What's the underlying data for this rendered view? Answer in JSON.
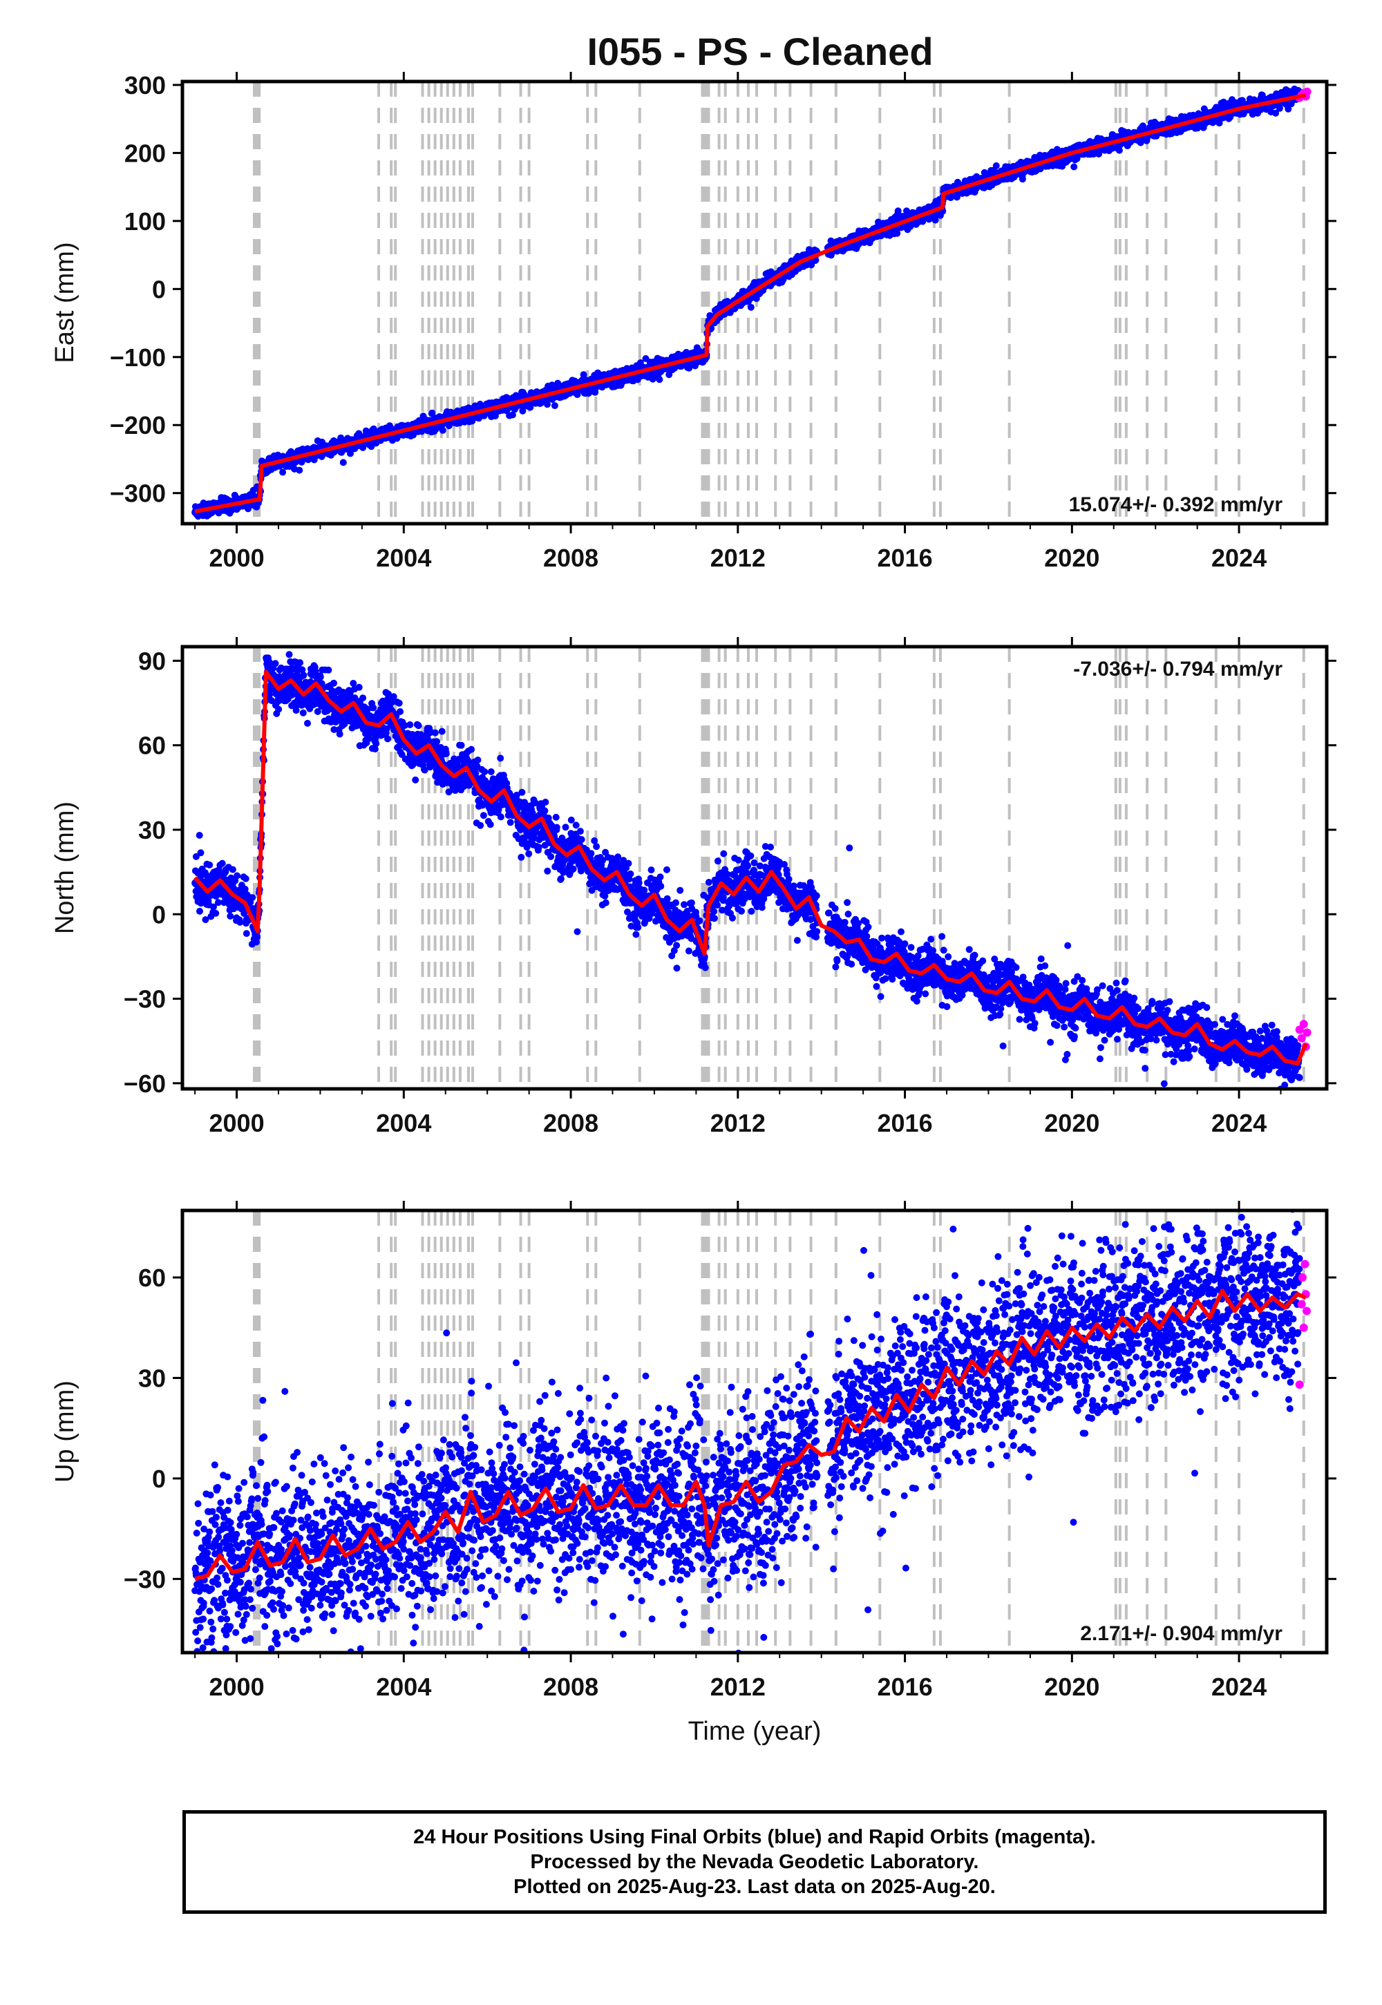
{
  "title": "I055  - PS - Cleaned",
  "xlabel": "Time (year)",
  "footer": {
    "line1": "24 Hour Positions Using Final Orbits (blue) and Rapid Orbits (magenta).",
    "line2": "Processed by the Nevada Geodetic Laboratory.",
    "line3": "Plotted on 2025-Aug-23. Last data on 2025-Aug-20."
  },
  "colors": {
    "final_orbits": "#0000ff",
    "rapid_orbits": "#ff00ff",
    "model": "#ff0000",
    "steps": "#c0c0c0"
  },
  "x_range": [
    1998.7,
    2026.1
  ],
  "x_ticks": [
    2000,
    2004,
    2008,
    2012,
    2016,
    2020,
    2024
  ],
  "step_dates": [
    2000.42,
    2000.45,
    2000.48,
    2000.51,
    2000.54,
    2003.4,
    2003.7,
    2003.8,
    2004.45,
    2004.6,
    2004.75,
    2004.9,
    2005.05,
    2005.2,
    2005.35,
    2005.55,
    2005.65,
    2006.3,
    2006.8,
    2007.0,
    2008.4,
    2008.6,
    2009.65,
    2011.15,
    2011.2,
    2011.25,
    2011.3,
    2011.55,
    2011.7,
    2012.0,
    2012.25,
    2012.45,
    2012.9,
    2013.25,
    2013.75,
    2014.35,
    2015.4,
    2016.7,
    2016.85,
    2018.5,
    2021.05,
    2021.15,
    2021.3,
    2021.8,
    2022.25,
    2023.45,
    2024.0,
    2025.55
  ],
  "chart_data": [
    {
      "type": "scatter",
      "ylabel": "East (mm)",
      "ylim": [
        -345,
        305
      ],
      "yticks": [
        -300,
        -200,
        -100,
        0,
        100,
        200,
        300
      ],
      "rate": "15.074+/- 0.392 mm/yr",
      "rate_position": "bottom-right",
      "model_series": {
        "x": [
          1999.0,
          2000.55,
          2000.6,
          2011.25,
          2011.27,
          2011.5,
          2012.0,
          2013.5,
          2014.5,
          2016.9,
          2016.92,
          2020.0,
          2022.0,
          2024.0,
          2025.6
        ],
        "y": [
          -327,
          -309,
          -260,
          -97,
          -55,
          -38,
          -18,
          40,
          65,
          120,
          140,
          200,
          232,
          265,
          285
        ]
      },
      "scatter_scale": 5,
      "rapid": {
        "x": [
          2025.45,
          2025.5,
          2025.55,
          2025.6,
          2025.63
        ],
        "y": [
          281,
          285,
          288,
          283,
          290
        ]
      }
    },
    {
      "type": "scatter",
      "ylabel": "North (mm)",
      "ylim": [
        -62,
        95
      ],
      "yticks": [
        -60,
        -30,
        0,
        30,
        60,
        90
      ],
      "rate": "-7.036+/- 0.794 mm/yr",
      "rate_position": "top-right",
      "model_series": {
        "x": [
          1999.0,
          1999.3,
          1999.6,
          1999.9,
          2000.2,
          2000.5,
          2000.55,
          2000.7,
          2001.0,
          2001.3,
          2001.6,
          2001.9,
          2002.2,
          2002.5,
          2002.8,
          2003.1,
          2003.4,
          2003.7,
          2004.0,
          2004.3,
          2004.6,
          2004.9,
          2005.2,
          2005.5,
          2005.8,
          2006.1,
          2006.4,
          2006.7,
          2007.0,
          2007.3,
          2007.6,
          2007.9,
          2008.2,
          2008.5,
          2008.8,
          2009.1,
          2009.4,
          2009.7,
          2010.0,
          2010.3,
          2010.6,
          2010.9,
          2011.2,
          2011.3,
          2011.6,
          2011.9,
          2012.2,
          2012.5,
          2012.8,
          2013.1,
          2013.4,
          2013.7,
          2014.0,
          2014.3,
          2014.6,
          2014.9,
          2015.2,
          2015.5,
          2015.8,
          2016.1,
          2016.4,
          2016.7,
          2017.0,
          2017.3,
          2017.6,
          2017.9,
          2018.2,
          2018.5,
          2018.8,
          2019.1,
          2019.4,
          2019.7,
          2020.0,
          2020.3,
          2020.6,
          2020.9,
          2021.2,
          2021.5,
          2021.8,
          2022.1,
          2022.4,
          2022.7,
          2023.0,
          2023.3,
          2023.6,
          2023.9,
          2024.2,
          2024.5,
          2024.8,
          2025.1,
          2025.4,
          2025.6
        ],
        "y": [
          13,
          8,
          12,
          7,
          4,
          -6,
          10,
          86,
          80,
          83,
          78,
          82,
          76,
          72,
          75,
          68,
          67,
          71,
          62,
          57,
          60,
          53,
          49,
          52,
          44,
          40,
          44,
          35,
          31,
          34,
          25,
          21,
          24,
          16,
          12,
          15,
          7,
          3,
          7,
          -2,
          -6,
          -2,
          -14,
          3,
          11,
          7,
          13,
          8,
          15,
          9,
          2,
          6,
          -4,
          -6,
          -10,
          -9,
          -16,
          -17,
          -14,
          -20,
          -21,
          -18,
          -23,
          -24,
          -21,
          -27,
          -28,
          -24,
          -30,
          -31,
          -27,
          -33,
          -34,
          -30,
          -36,
          -37,
          -33,
          -39,
          -40,
          -37,
          -42,
          -43,
          -39,
          -46,
          -48,
          -45,
          -49,
          -50,
          -47,
          -52,
          -53,
          -46
        ]
      },
      "scatter_scale": 4,
      "rapid": {
        "x": [
          2025.45,
          2025.5,
          2025.55,
          2025.6,
          2025.63
        ],
        "y": [
          -41,
          -44,
          -39,
          -47,
          -42
        ]
      }
    },
    {
      "type": "scatter",
      "ylabel": "Up (mm)",
      "ylim": [
        -52,
        80
      ],
      "yticks": [
        -30,
        0,
        30,
        60
      ],
      "rate": "2.171+/- 0.904 mm/yr",
      "rate_position": "bottom-right",
      "model_series": {
        "x": [
          1999.0,
          1999.3,
          1999.6,
          1999.9,
          2000.2,
          2000.5,
          2000.8,
          2001.1,
          2001.4,
          2001.7,
          2002.0,
          2002.3,
          2002.6,
          2002.9,
          2003.2,
          2003.5,
          2003.8,
          2004.1,
          2004.4,
          2004.7,
          2005.0,
          2005.3,
          2005.6,
          2005.9,
          2006.2,
          2006.5,
          2006.8,
          2007.1,
          2007.4,
          2007.7,
          2008.0,
          2008.3,
          2008.6,
          2008.9,
          2009.2,
          2009.5,
          2009.8,
          2010.1,
          2010.4,
          2010.7,
          2011.0,
          2011.2,
          2011.3,
          2011.6,
          2011.9,
          2012.2,
          2012.5,
          2012.8,
          2013.1,
          2013.4,
          2013.7,
          2014.0,
          2014.3,
          2014.6,
          2014.9,
          2015.2,
          2015.5,
          2015.8,
          2016.1,
          2016.4,
          2016.7,
          2017.0,
          2017.3,
          2017.6,
          2017.9,
          2018.2,
          2018.5,
          2018.8,
          2019.1,
          2019.4,
          2019.7,
          2020.0,
          2020.3,
          2020.6,
          2020.9,
          2021.2,
          2021.5,
          2021.8,
          2022.1,
          2022.4,
          2022.7,
          2023.0,
          2023.3,
          2023.6,
          2023.9,
          2024.2,
          2024.5,
          2024.8,
          2025.1,
          2025.4,
          2025.6
        ],
        "y": [
          -30,
          -29,
          -23,
          -28,
          -27,
          -19,
          -26,
          -25,
          -18,
          -25,
          -24,
          -17,
          -23,
          -21,
          -15,
          -21,
          -19,
          -13,
          -19,
          -16,
          -10,
          -16,
          -4,
          -13,
          -11,
          -4,
          -11,
          -9,
          -3,
          -10,
          -9,
          -2,
          -9,
          -8,
          -2,
          -8,
          -8,
          -2,
          -8,
          -8,
          -1,
          -8,
          -20,
          -8,
          -7,
          -1,
          -7,
          -4,
          4,
          5,
          10,
          7,
          8,
          18,
          14,
          21,
          17,
          25,
          20,
          28,
          24,
          33,
          28,
          35,
          31,
          38,
          34,
          42,
          37,
          44,
          39,
          45,
          41,
          46,
          42,
          48,
          44,
          49,
          45,
          51,
          47,
          53,
          48,
          56,
          50,
          55,
          50,
          54,
          51,
          55,
          54
        ]
      },
      "scatter_scale": 12,
      "rapid": {
        "x": [
          2025.45,
          2025.5,
          2025.52,
          2025.55,
          2025.58,
          2025.6,
          2025.62
        ],
        "y": [
          28,
          52,
          60,
          45,
          64,
          55,
          50
        ]
      }
    }
  ]
}
